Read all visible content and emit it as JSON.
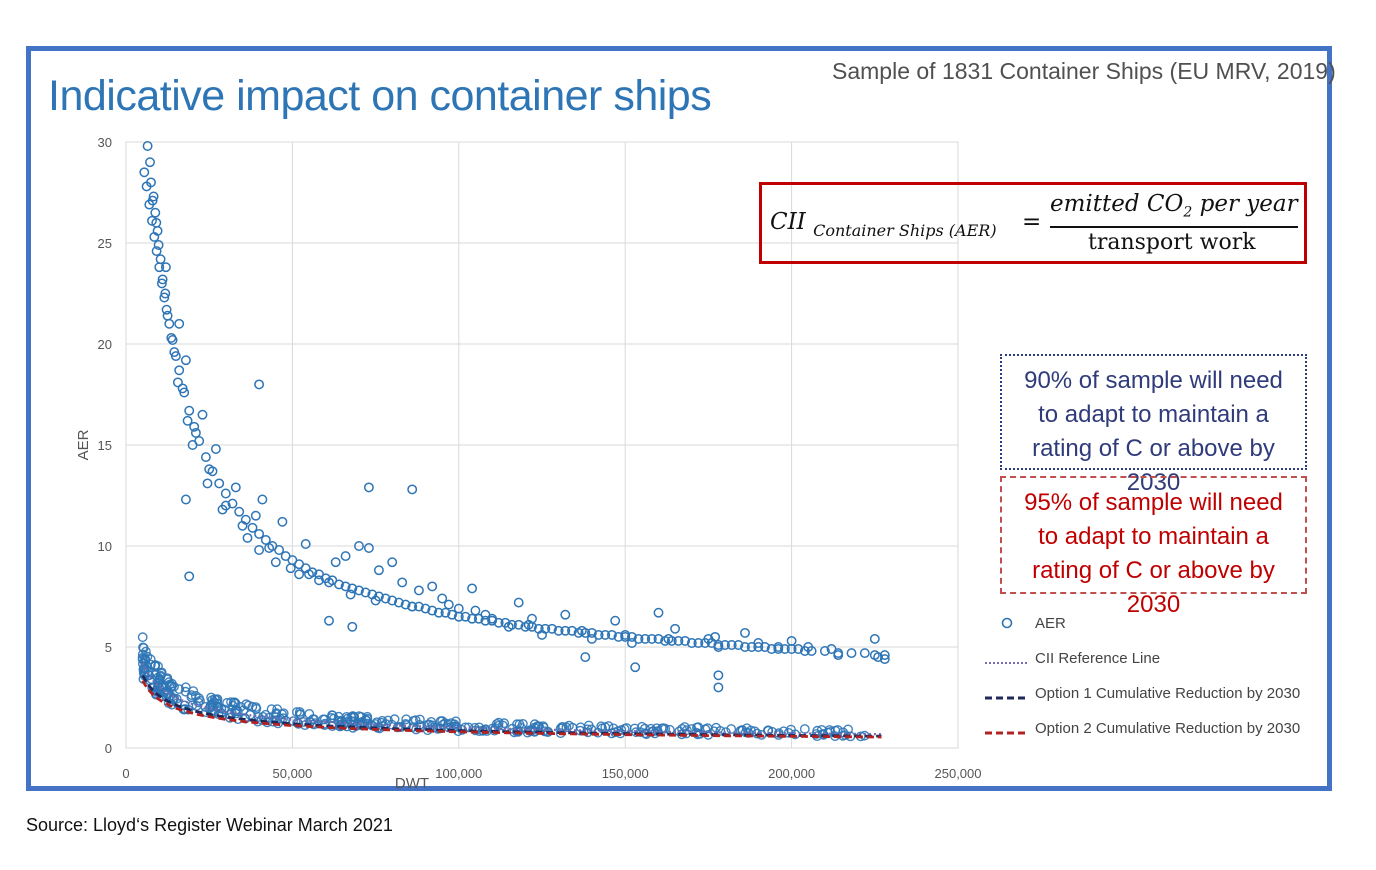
{
  "title": "Indicative impact on container ships",
  "subtitle": "Sample of 1831 Container Ships (EU MRV, 2019)",
  "formula": {
    "lhs": "CII",
    "lhs_subscript": "Container Ships (AER)",
    "equals": "=",
    "numerator": "emitted CO",
    "numerator_sub": "2",
    "numerator_tail": " per year",
    "denominator": "transport work"
  },
  "notes": {
    "option1": "90% of sample will need to adapt to maintain a rating of C or above by 2030",
    "option2": "95% of sample will need to adapt to maintain a rating of C or above by 2030"
  },
  "legend": {
    "aer": "AER",
    "reference": "CII Reference Line",
    "option1": "Option 1 Cumulative Reduction by 2030",
    "option2": "Option 2 Cumulative Reduction by 2030"
  },
  "source": "Source:  Lloyd‘s Register Webinar  March 2021",
  "colors": {
    "frame": "#4472c4",
    "title": "#2e75b6",
    "points": "#2e75b6",
    "reference": "#7b6bb0",
    "option1": "#1f2a5a",
    "option2": "#b22222",
    "formula_border": "#c00000"
  },
  "chart_data": {
    "type": "scatter",
    "xlabel": "DWT",
    "ylabel": "AER",
    "xlim": [
      0,
      250000
    ],
    "ylim": [
      0,
      30
    ],
    "xticks": [
      0,
      50000,
      100000,
      150000,
      200000,
      250000
    ],
    "xtick_labels": [
      "0",
      "50,000",
      "100,000",
      "150,000",
      "200,000",
      "250,000"
    ],
    "yticks": [
      0,
      5,
      10,
      15,
      20,
      25,
      30
    ],
    "ytick_labels": [
      "0",
      "5",
      "10",
      "15",
      "20",
      "25",
      "30"
    ],
    "grid": true,
    "series": [
      {
        "name": "AER",
        "kind": "points",
        "x": [
          5500,
          6200,
          7000,
          7800,
          8500,
          9200,
          10000,
          10800,
          11500,
          12200,
          13000,
          14000,
          15000,
          16000,
          17500,
          19000,
          20500,
          22000,
          24000,
          26000,
          28000,
          30000,
          32000,
          34000,
          36000,
          38000,
          40000,
          42000,
          44000,
          46000,
          48000,
          50000,
          52000,
          54000,
          56000,
          58000,
          60000,
          62000,
          64000,
          66000,
          68000,
          70000,
          72000,
          74000,
          76000,
          78000,
          80000,
          82000,
          84000,
          86000,
          88000,
          90000,
          92000,
          94000,
          96000,
          98000,
          100000,
          102000,
          104000,
          106000,
          108000,
          110000,
          112000,
          114000,
          116000,
          118000,
          120000,
          122000,
          124000,
          126000,
          128000,
          130000,
          132000,
          134000,
          136000,
          138000,
          140000,
          142000,
          144000,
          146000,
          148000,
          150000,
          152000,
          154000,
          156000,
          158000,
          160000,
          162000,
          164000,
          166000,
          168000,
          170000,
          172000,
          174000,
          176000,
          178000,
          180000,
          182000,
          184000,
          186000,
          188000,
          190000,
          192000,
          194000,
          196000,
          198000,
          200000,
          202000,
          204000,
          206000,
          210000,
          214000,
          218000,
          222000,
          225000,
          228000,
          6500,
          7500,
          8800,
          9800,
          11000,
          12500,
          14500,
          17000,
          21000,
          25000,
          30000,
          35000,
          40000,
          45000,
          52000,
          58000,
          63000,
          70000,
          76000,
          83000,
          88000,
          95000,
          100000,
          105000,
          110000,
          115000,
          125000,
          140000,
          152000,
          165000,
          178000,
          186000,
          200000,
          214000,
          225000,
          8000,
          9500,
          12000,
          16000,
          18000,
          23000,
          27000,
          33000,
          39000,
          41000,
          47000,
          54000,
          66000,
          73000,
          80000,
          92000,
          104000,
          118000,
          132000,
          147000,
          160000,
          177000,
          196000,
          212000,
          226000,
          7200,
          8300,
          9100,
          10400,
          11800,
          13600,
          15600,
          18500,
          20000,
          24500,
          29000,
          36500,
          43000,
          49500,
          55000,
          61000,
          67500,
          75000,
          86000,
          97000,
          108000,
          121000,
          137000,
          150000,
          163000,
          175000,
          190000,
          205000,
          228000,
          178000,
          178000,
          153000,
          138000,
          122000,
          86000,
          73000,
          68000,
          61000,
          40000,
          19000,
          18000
        ],
        "y": [
          28.5,
          27.8,
          26.9,
          26.1,
          25.3,
          24.6,
          23.8,
          23.0,
          22.3,
          21.7,
          21.0,
          20.2,
          19.4,
          18.7,
          17.6,
          16.7,
          15.9,
          15.2,
          14.4,
          13.7,
          13.1,
          12.6,
          12.1,
          11.7,
          11.3,
          10.9,
          10.6,
          10.3,
          10.0,
          9.8,
          9.5,
          9.3,
          9.1,
          8.9,
          8.7,
          8.6,
          8.4,
          8.3,
          8.1,
          8.0,
          7.9,
          7.8,
          7.7,
          7.6,
          7.5,
          7.4,
          7.3,
          7.2,
          7.1,
          7.0,
          7.0,
          6.9,
          6.8,
          6.7,
          6.7,
          6.6,
          6.5,
          6.5,
          6.4,
          6.4,
          6.3,
          6.3,
          6.2,
          6.2,
          6.1,
          6.1,
          6.0,
          6.0,
          5.9,
          5.9,
          5.9,
          5.8,
          5.8,
          5.8,
          5.7,
          5.7,
          5.7,
          5.6,
          5.6,
          5.6,
          5.5,
          5.5,
          5.5,
          5.4,
          5.4,
          5.4,
          5.4,
          5.3,
          5.3,
          5.3,
          5.3,
          5.2,
          5.2,
          5.2,
          5.2,
          5.1,
          5.1,
          5.1,
          5.1,
          5.0,
          5.0,
          5.0,
          5.0,
          4.9,
          4.9,
          4.9,
          4.9,
          4.9,
          4.8,
          4.8,
          4.8,
          4.7,
          4.7,
          4.7,
          4.6,
          4.6,
          29.8,
          28.0,
          26.5,
          24.9,
          23.2,
          21.4,
          19.6,
          17.8,
          15.6,
          13.8,
          12.0,
          11.0,
          9.8,
          9.2,
          8.6,
          8.3,
          9.2,
          10.0,
          8.8,
          8.2,
          7.8,
          7.4,
          6.9,
          6.8,
          6.4,
          6.0,
          5.6,
          5.4,
          5.2,
          5.9,
          5.0,
          5.7,
          5.3,
          4.6,
          5.4,
          27.1,
          25.6,
          23.8,
          21.0,
          19.2,
          16.5,
          14.8,
          12.9,
          11.5,
          12.3,
          11.2,
          10.1,
          9.5,
          9.9,
          9.2,
          8.0,
          7.9,
          7.2,
          6.6,
          6.3,
          6.7,
          5.5,
          5.0,
          4.9,
          4.5,
          29.0,
          27.3,
          26.0,
          24.2,
          22.5,
          20.3,
          18.1,
          16.2,
          15.0,
          13.1,
          11.8,
          10.4,
          9.9,
          8.9,
          8.6,
          8.2,
          7.6,
          7.3,
          7.0,
          7.1,
          6.6,
          6.1,
          5.8,
          5.6,
          5.4,
          5.4,
          5.2,
          5.0,
          4.4,
          3.0,
          3.6,
          4.0,
          4.5,
          6.4,
          12.8,
          12.9,
          6.0,
          6.3,
          18.0,
          8.5,
          12.3
        ]
      },
      {
        "name": "CII Reference Line",
        "kind": "curve",
        "a": 240,
        "c": 0.475
      },
      {
        "name": "Option 1 Cumulative Reduction by 2030",
        "kind": "curve",
        "a": 205,
        "c": 0.475
      },
      {
        "name": "Option 2 Cumulative Reduction by 2030",
        "kind": "curve",
        "a": 190,
        "c": 0.475
      }
    ]
  }
}
